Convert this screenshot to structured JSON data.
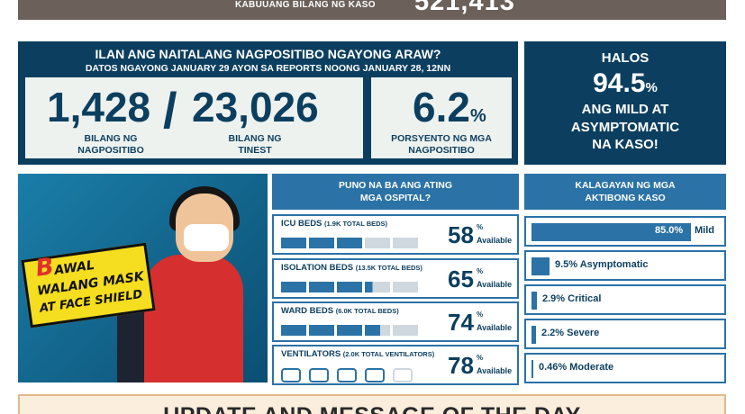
{
  "topbar": {
    "label": "KABUUANG BILANG NG KASO",
    "value": "521,413"
  },
  "today": {
    "title": "ILAN ANG NAITALANG NAGPOSITIBO NGAYONG ARAW?",
    "subtitle": "DATOS NGAYONG JANUARY 29 AYON SA REPORTS NOONG JANUARY 28, 12NN",
    "positive": {
      "value": "1,428",
      "caption_1": "BILANG NG",
      "caption_2": "NAGPOSITIBO"
    },
    "separator": "/",
    "tested": {
      "value": "23,026",
      "caption_1": "BILANG NG",
      "caption_2": "TINEST"
    },
    "rate": {
      "value": "6.2",
      "unit": "%",
      "caption_1": "PORSYENTO NG MGA",
      "caption_2": "NAGPOSITIBO"
    }
  },
  "halos": {
    "line1": "HALOS",
    "value": "94.5",
    "unit": "%",
    "line3": "ANG MILD AT",
    "line4": "ASYMPTOMATIC",
    "line5": "NA KASO!"
  },
  "poster": {
    "line1": "B",
    "line1_rest": "AWAL",
    "line2": "WALANG MASK",
    "line3": "AT FACE SHIELD"
  },
  "hospitals": {
    "header_1": "PUNO NA BA ANG ATING",
    "header_2": "MGA OSPITAL?",
    "rows": [
      {
        "name": "ICU BEDS",
        "note": "(1.9K TOTAL BEDS)",
        "value": "58",
        "unit": "%",
        "available": "Available",
        "filled": 3,
        "total": 5
      },
      {
        "name": "ISOLATION BEDS",
        "note": "(13.5K TOTAL BEDS)",
        "value": "65",
        "unit": "%",
        "available": "Available",
        "filled": 3.3,
        "total": 5
      },
      {
        "name": "WARD BEDS",
        "note": "(6.0K TOTAL BEDS)",
        "value": "74",
        "unit": "%",
        "available": "Available",
        "filled": 3.6,
        "total": 5
      },
      {
        "name": "VENTILATORS",
        "note": "(2.0K TOTAL VENTILATORS)",
        "value": "78",
        "unit": "%",
        "available": "Available",
        "filled": 4,
        "total": 5
      }
    ]
  },
  "kalagayan": {
    "header_1": "KALAGAYAN NG MGA",
    "header_2": "AKTIBONG KASO",
    "rows": [
      {
        "pct": "85.0%",
        "label": "Mild",
        "fraction": 0.85
      },
      {
        "pct": "9.5%",
        "label": "Asymptomatic",
        "fraction": 0.095
      },
      {
        "pct": "2.9%",
        "label": "Critical",
        "fraction": 0.029
      },
      {
        "pct": "2.2%",
        "label": "Severe",
        "fraction": 0.022
      },
      {
        "pct": "0.46%",
        "label": "Moderate",
        "fraction": 0.0046
      }
    ]
  },
  "update": {
    "title": "UPDATE AND MESSAGE OF THE DAY"
  },
  "colors": {
    "dark_blue": "#0c3f5f",
    "mid_blue": "#2b72a6",
    "light_bar": "#cfd8de",
    "brown": "#6b605a"
  }
}
